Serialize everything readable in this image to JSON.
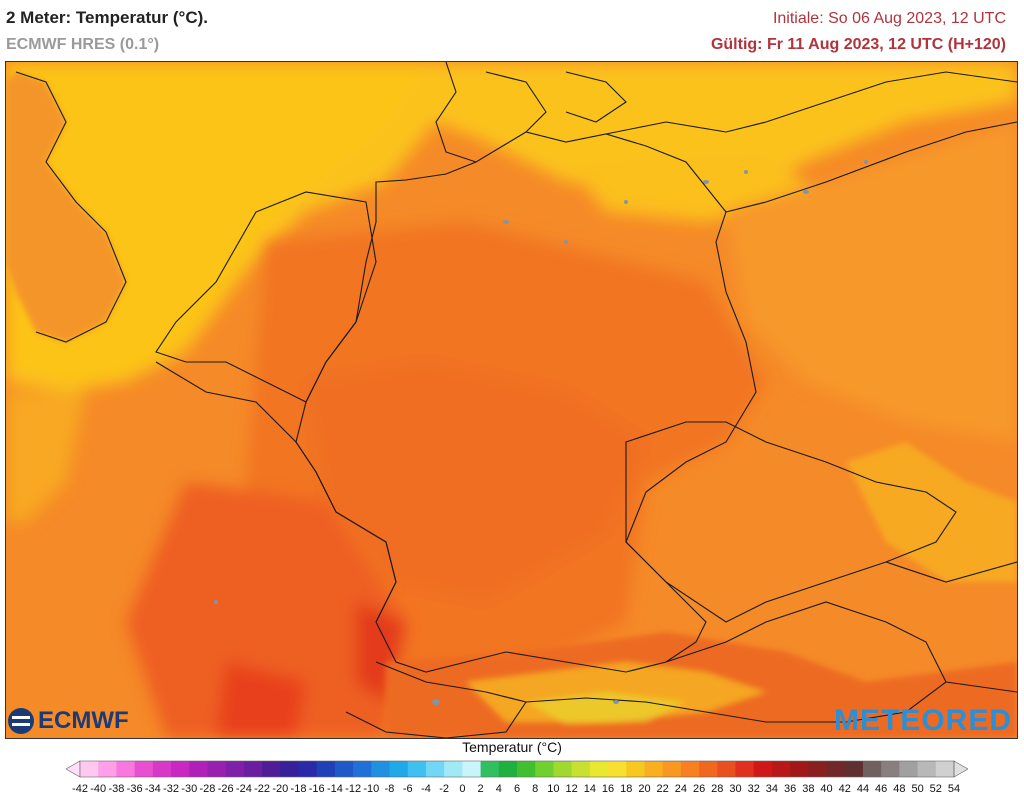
{
  "header": {
    "title": "2 Meter: Temperatur (°C).",
    "model": "ECMWF HRES (0.1°)",
    "init": "Initiale: So 06 Aug 2023, 12 UTC",
    "valid": "Gültig: Fr 11 Aug 2023, 12 UTC (H+120)"
  },
  "logos": {
    "left": "ECMWF",
    "right": "METEORED"
  },
  "legend": {
    "title": "Temperatur (°C)",
    "labels": [
      "-42",
      "-40",
      "-38",
      "-36",
      "-34",
      "-32",
      "-30",
      "-28",
      "-26",
      "-24",
      "-22",
      "-20",
      "-18",
      "-16",
      "-14",
      "-12",
      "-10",
      "-8",
      "-6",
      "-4",
      "-2",
      "0",
      "2",
      "4",
      "6",
      "8",
      "10",
      "12",
      "14",
      "16",
      "18",
      "20",
      "22",
      "24",
      "26",
      "28",
      "30",
      "32",
      "34",
      "36",
      "38",
      "40",
      "42",
      "44",
      "46",
      "48",
      "50",
      "52",
      "54"
    ],
    "colors": [
      "#ffc8f0",
      "#ffa0e8",
      "#f878e0",
      "#e850d0",
      "#d838c8",
      "#c828c0",
      "#b020b8",
      "#9820b0",
      "#8020a8",
      "#6a1ea0",
      "#501c98",
      "#38209a",
      "#2a2aa8",
      "#2040b8",
      "#2058c8",
      "#2070d8",
      "#2090e0",
      "#20a8e8",
      "#40c0f0",
      "#70d8f4",
      "#a0eaf8",
      "#c8f4fa",
      "#30c060",
      "#20b040",
      "#40c030",
      "#70d030",
      "#a0d830",
      "#c8e030",
      "#e8e830",
      "#f8e030",
      "#f8c820",
      "#f8b020",
      "#f89820",
      "#f88020",
      "#f06820",
      "#e85020",
      "#e03020",
      "#d01818",
      "#b81818",
      "#a01818",
      "#882020",
      "#702828",
      "#603030",
      "#706060",
      "#888080",
      "#a0a0a0",
      "#b8b8b8",
      "#d0d0d0"
    ]
  }
}
